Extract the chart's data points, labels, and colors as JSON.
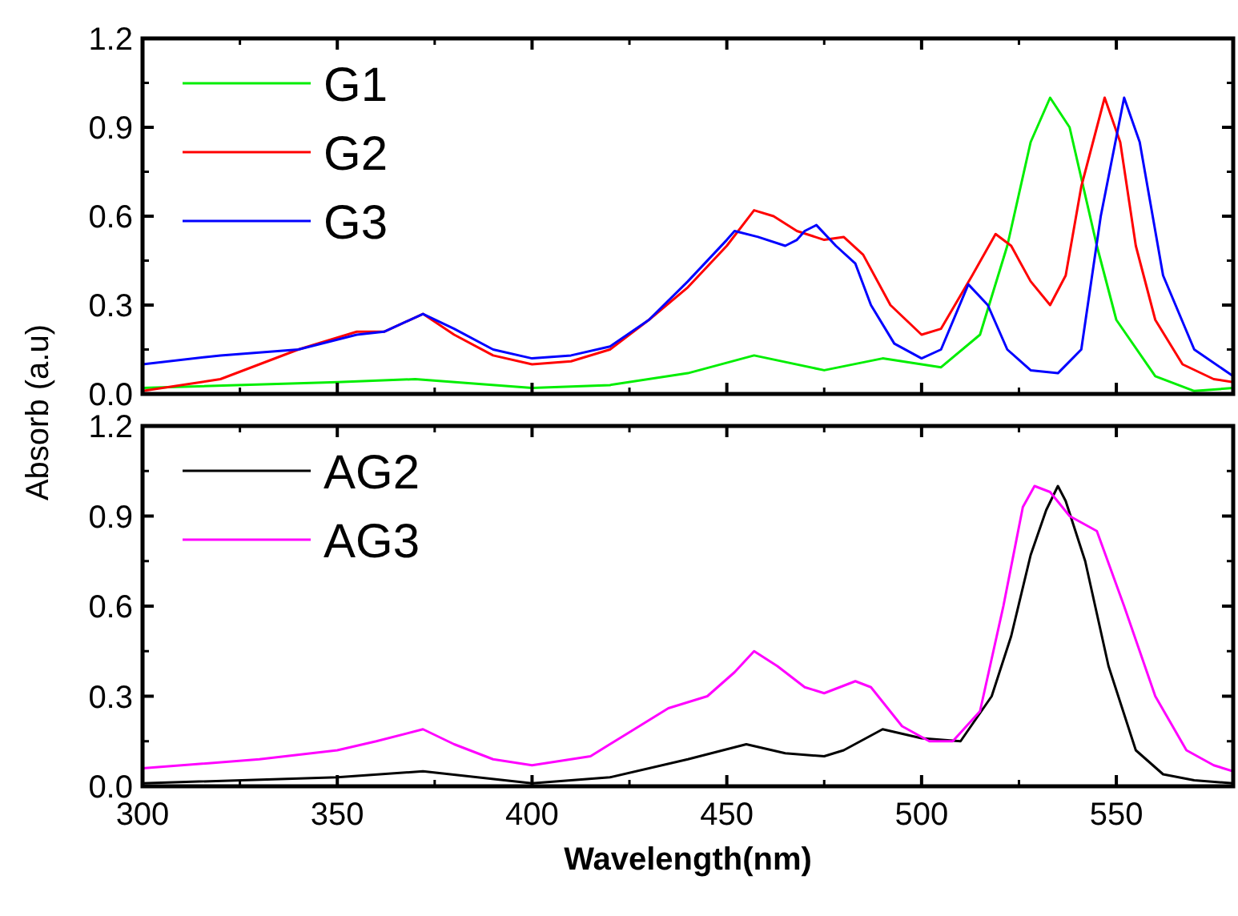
{
  "chart_data": [
    {
      "type": "line",
      "ylabel": "Absorb (a.u)",
      "xlim": [
        300,
        580
      ],
      "xticks": [
        300,
        350,
        400,
        450,
        500,
        550
      ],
      "ylim": [
        0,
        1.2
      ],
      "yticks": [
        {
          "value": 0,
          "label": "0.0"
        },
        0.3,
        0.6,
        0.9,
        1.2
      ],
      "tick_labels": "y",
      "legend": "top left",
      "grid": false,
      "series": [
        {
          "name": "G1",
          "color": "#00ee00",
          "x": [
            300,
            350,
            370,
            400,
            420,
            440,
            457,
            475,
            490,
            505,
            515,
            522,
            528,
            533,
            538,
            545,
            550,
            560,
            570,
            580
          ],
          "values": [
            0.02,
            0.04,
            0.05,
            0.02,
            0.03,
            0.07,
            0.13,
            0.08,
            0.12,
            0.09,
            0.2,
            0.5,
            0.85,
            1.0,
            0.9,
            0.5,
            0.25,
            0.06,
            0.01,
            0.02
          ]
        },
        {
          "name": "G2",
          "color": "#ff0000",
          "x": [
            300,
            320,
            340,
            355,
            362,
            372,
            380,
            390,
            400,
            410,
            420,
            430,
            440,
            450,
            457,
            462,
            468,
            475,
            480,
            485,
            492,
            500,
            505,
            513,
            519,
            523,
            528,
            533,
            537,
            541,
            547,
            551,
            555,
            560,
            567,
            575,
            580
          ],
          "values": [
            0.01,
            0.05,
            0.15,
            0.21,
            0.21,
            0.27,
            0.2,
            0.13,
            0.1,
            0.11,
            0.15,
            0.25,
            0.36,
            0.5,
            0.62,
            0.6,
            0.55,
            0.52,
            0.53,
            0.47,
            0.3,
            0.2,
            0.22,
            0.4,
            0.54,
            0.5,
            0.38,
            0.3,
            0.4,
            0.7,
            1.0,
            0.85,
            0.5,
            0.25,
            0.1,
            0.05,
            0.04
          ]
        },
        {
          "name": "G3",
          "color": "#0000ff",
          "x": [
            300,
            320,
            340,
            355,
            362,
            372,
            380,
            390,
            400,
            410,
            420,
            430,
            440,
            450,
            452,
            458,
            465,
            468,
            470,
            473,
            478,
            483,
            487,
            493,
            500,
            505,
            512,
            517,
            522,
            528,
            535,
            541,
            546,
            552,
            556,
            562,
            570,
            580
          ],
          "values": [
            0.1,
            0.13,
            0.15,
            0.2,
            0.21,
            0.27,
            0.22,
            0.15,
            0.12,
            0.13,
            0.16,
            0.25,
            0.38,
            0.52,
            0.55,
            0.53,
            0.5,
            0.52,
            0.55,
            0.57,
            0.5,
            0.44,
            0.3,
            0.17,
            0.12,
            0.15,
            0.37,
            0.3,
            0.15,
            0.08,
            0.07,
            0.15,
            0.6,
            1.0,
            0.85,
            0.4,
            0.15,
            0.06
          ]
        }
      ]
    },
    {
      "type": "line",
      "xlabel": "Wavelength(nm)",
      "xlim": [
        300,
        580
      ],
      "xticks": [
        300,
        350,
        400,
        450,
        500,
        550
      ],
      "ylim": [
        0,
        1.2
      ],
      "yticks": [
        {
          "value": 0,
          "label": "0.0"
        },
        0.3,
        0.6,
        0.9,
        1.2
      ],
      "legend": "top left",
      "grid": false,
      "series": [
        {
          "name": "AG2",
          "color": "#000000",
          "x": [
            300,
            350,
            372,
            400,
            420,
            440,
            455,
            465,
            475,
            480,
            490,
            500,
            510,
            518,
            523,
            528,
            532,
            535,
            537,
            542,
            548,
            555,
            562,
            570,
            580
          ],
          "values": [
            0.01,
            0.03,
            0.05,
            0.01,
            0.03,
            0.09,
            0.14,
            0.11,
            0.1,
            0.12,
            0.19,
            0.16,
            0.15,
            0.3,
            0.5,
            0.77,
            0.92,
            1.0,
            0.95,
            0.75,
            0.4,
            0.12,
            0.04,
            0.02,
            0.01
          ]
        },
        {
          "name": "AG3",
          "color": "#ff00ff",
          "x": [
            300,
            330,
            350,
            360,
            372,
            380,
            390,
            400,
            415,
            425,
            435,
            445,
            452,
            457,
            463,
            470,
            475,
            483,
            487,
            495,
            502,
            508,
            515,
            521,
            526,
            529,
            533,
            538,
            545,
            552,
            560,
            568,
            575,
            580
          ],
          "values": [
            0.06,
            0.09,
            0.12,
            0.15,
            0.19,
            0.14,
            0.09,
            0.07,
            0.1,
            0.18,
            0.26,
            0.3,
            0.38,
            0.45,
            0.4,
            0.33,
            0.31,
            0.35,
            0.33,
            0.2,
            0.15,
            0.15,
            0.25,
            0.6,
            0.93,
            1.0,
            0.98,
            0.9,
            0.85,
            0.6,
            0.3,
            0.12,
            0.07,
            0.05
          ]
        }
      ]
    }
  ]
}
